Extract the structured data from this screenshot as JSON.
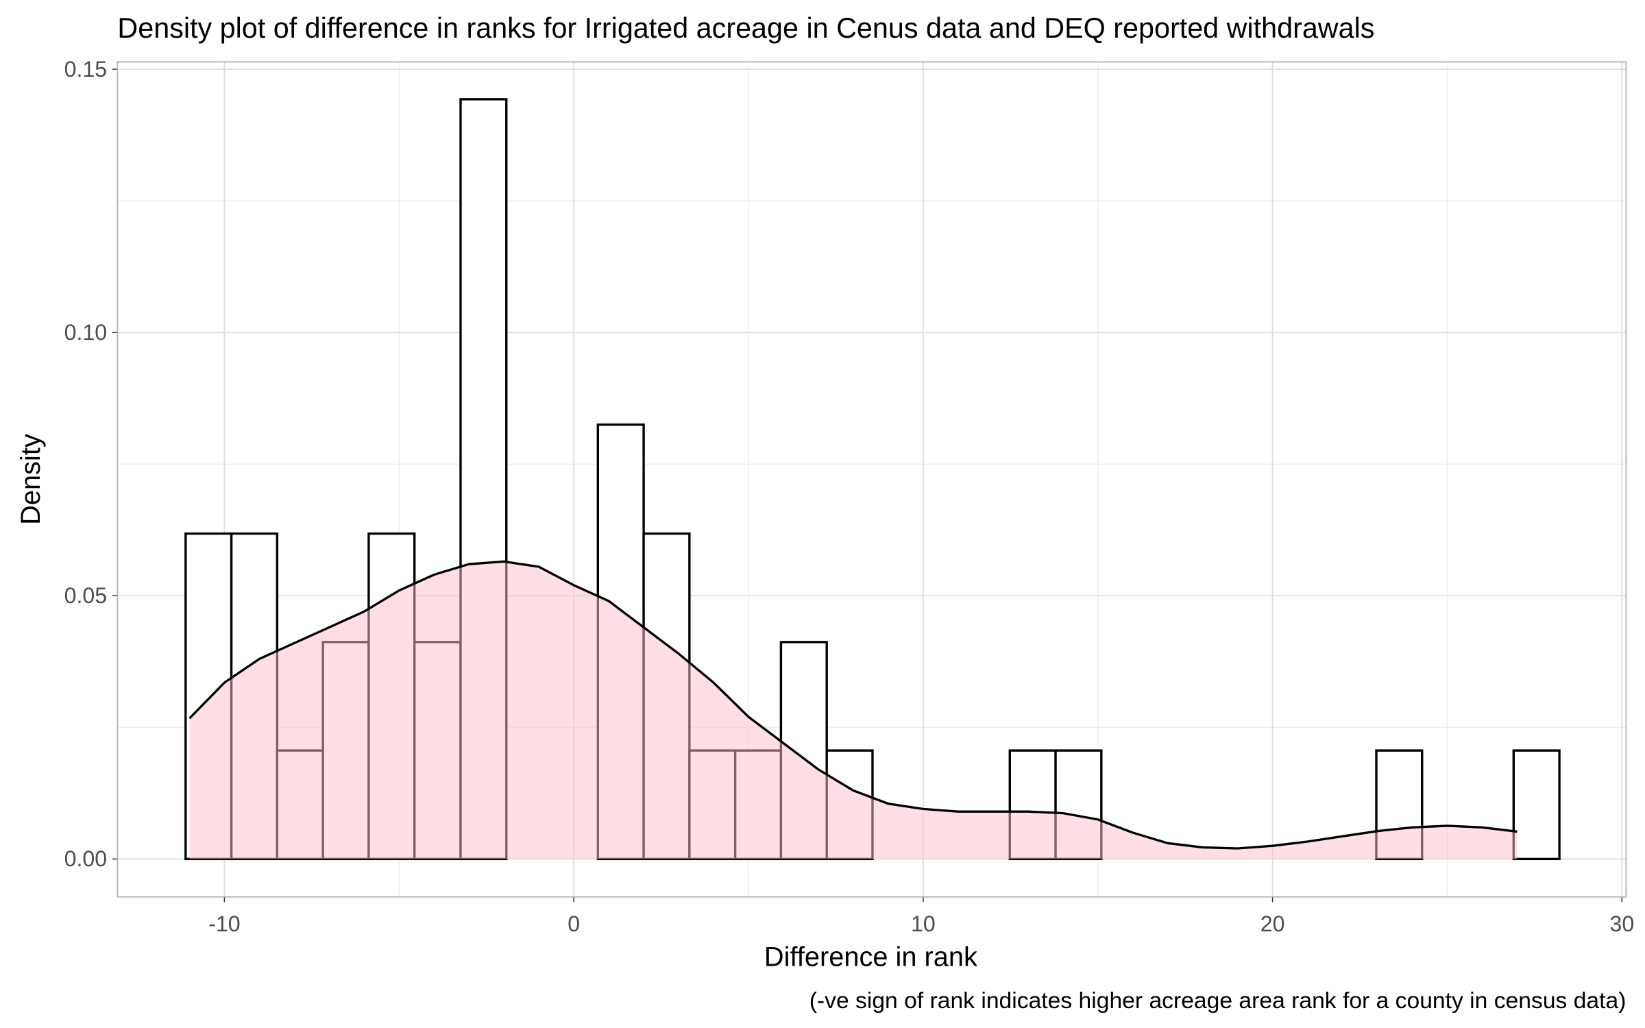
{
  "chart_data": {
    "type": "histogram",
    "title": "Density plot of difference in ranks for Irrigated acreage in Cenus data and DEQ reported withdrawals",
    "xlabel": "Difference in rank",
    "ylabel": "Density",
    "caption": "(-ve sign of rank indicates higher acreage area rank for a county in census data)",
    "bins": [
      -11.11,
      -9.8,
      -8.49,
      -7.18,
      -5.87,
      -4.56,
      -3.24,
      -1.93,
      -0.62,
      0.69,
      2.0,
      3.31,
      4.62,
      5.93,
      7.24,
      8.55,
      9.86,
      11.17,
      12.48,
      13.79,
      15.1,
      16.41,
      17.73,
      19.04,
      20.35,
      21.66,
      22.97,
      24.28,
      25.59,
      26.9,
      28.21
    ],
    "values": [
      0.0618,
      0.0618,
      0.0206,
      0.0412,
      0.0618,
      0.0412,
      0.1443,
      0,
      0,
      0.0825,
      0.0618,
      0.0206,
      0.0206,
      0.0412,
      0.0206,
      0,
      0,
      0,
      0.0206,
      0.0206,
      0,
      0,
      0,
      0,
      0,
      0,
      0.0206,
      0,
      0,
      0.0206
    ],
    "bar_fill": "#ffffff",
    "bar_edge": "#000000",
    "density": {
      "color": "#ffc0cb",
      "x": [
        -11,
        -10,
        -9,
        -8,
        -7,
        -6,
        -5,
        -4,
        -3,
        -2,
        -1,
        0,
        1,
        2,
        3,
        4,
        5,
        6,
        7,
        8,
        9,
        10,
        11,
        12,
        13,
        14,
        15,
        16,
        17,
        18,
        19,
        20,
        21,
        22,
        23,
        24,
        25,
        26,
        27
      ],
      "y": [
        0.0267,
        0.0335,
        0.038,
        0.041,
        0.044,
        0.047,
        0.051,
        0.054,
        0.056,
        0.0565,
        0.0555,
        0.052,
        0.049,
        0.044,
        0.039,
        0.0335,
        0.027,
        0.022,
        0.017,
        0.013,
        0.0105,
        0.0095,
        0.009,
        0.009,
        0.009,
        0.0087,
        0.0075,
        0.005,
        0.003,
        0.0022,
        0.002,
        0.0025,
        0.0033,
        0.0043,
        0.0053,
        0.006,
        0.0063,
        0.006,
        0.0052
      ]
    },
    "xlim": [
      -13.06,
      30.12
    ],
    "ylim": [
      -0.0072,
      0.1514
    ],
    "xticks": [
      -10,
      0,
      10,
      20,
      30
    ],
    "yticks": [
      {
        "value": 0,
        "label": "0.00"
      },
      {
        "value": 0.05,
        "label": "0.05"
      },
      {
        "value": 0.1,
        "label": "0.10"
      },
      {
        "value": 0.15,
        "label": "0.15"
      }
    ],
    "x_minor_grid": [
      -5,
      5,
      15,
      25
    ],
    "y_minor_grid": [
      0.025,
      0.075,
      0.125
    ],
    "grid": true
  }
}
